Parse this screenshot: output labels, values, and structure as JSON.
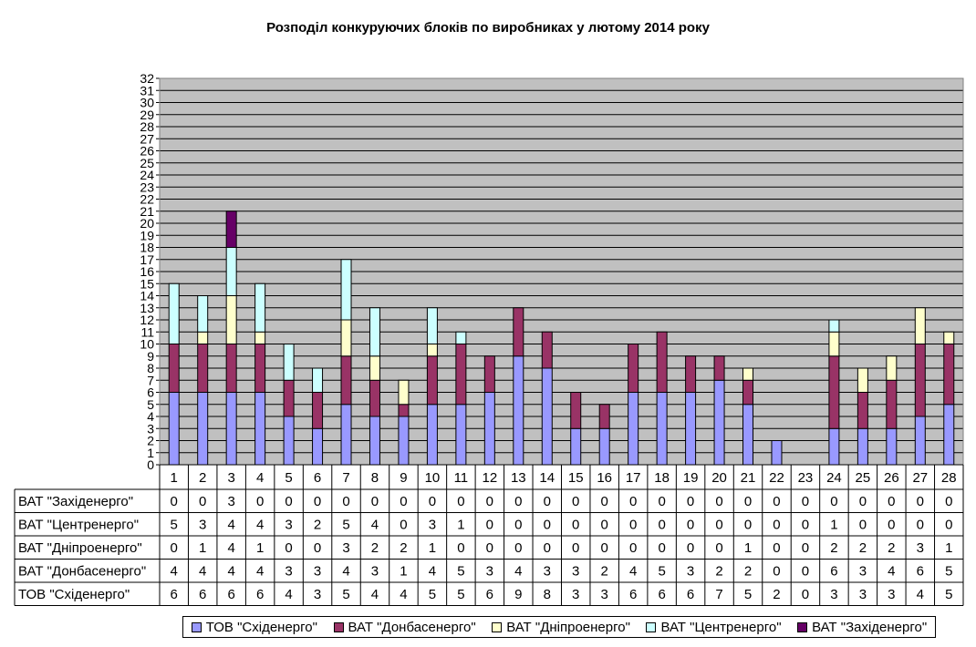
{
  "chart_data": {
    "type": "bar",
    "stacked": true,
    "title": "Розподіл конкуруючих блоків по виробниках у лютому 2014 року",
    "xlabel": "",
    "ylabel": "",
    "ylim": [
      0,
      32
    ],
    "yticks": [
      "0",
      "1",
      "2",
      "3",
      "4",
      "5",
      "6",
      "7",
      "8",
      "9",
      "10",
      "11",
      "12",
      "13",
      "14",
      "15",
      "16",
      "17",
      "18",
      "19",
      "20",
      "21",
      "22",
      "23",
      "24",
      "25",
      "26",
      "27",
      "28",
      "29",
      "30",
      "31",
      "32"
    ],
    "grid": true,
    "legend_position": "bottom",
    "categories": [
      "1",
      "2",
      "3",
      "4",
      "5",
      "6",
      "7",
      "8",
      "9",
      "10",
      "11",
      "12",
      "13",
      "14",
      "15",
      "16",
      "17",
      "18",
      "19",
      "20",
      "21",
      "22",
      "23",
      "24",
      "25",
      "26",
      "27",
      "28"
    ],
    "series": [
      {
        "name": "ТОВ \"Східенерго\"",
        "color": "#9999ff",
        "values": [
          6,
          6,
          6,
          6,
          4,
          3,
          5,
          4,
          4,
          5,
          5,
          6,
          9,
          8,
          3,
          3,
          6,
          6,
          6,
          7,
          5,
          2,
          0,
          3,
          3,
          3,
          4,
          5
        ]
      },
      {
        "name": "ВАТ \"Донбасенерго\"",
        "color": "#993366",
        "values": [
          4,
          4,
          4,
          4,
          3,
          3,
          4,
          3,
          1,
          4,
          5,
          3,
          4,
          3,
          3,
          2,
          4,
          5,
          3,
          2,
          2,
          0,
          0,
          6,
          3,
          4,
          6,
          5
        ]
      },
      {
        "name": "ВАТ \"Дніпроенерго\"",
        "color": "#ffffcc",
        "values": [
          0,
          1,
          4,
          1,
          0,
          0,
          3,
          2,
          2,
          1,
          0,
          0,
          0,
          0,
          0,
          0,
          0,
          0,
          0,
          0,
          1,
          0,
          0,
          2,
          2,
          2,
          3,
          1
        ]
      },
      {
        "name": "ВАТ \"Центренерго\"",
        "color": "#ccffff",
        "values": [
          5,
          3,
          4,
          4,
          3,
          2,
          5,
          4,
          0,
          3,
          1,
          0,
          0,
          0,
          0,
          0,
          0,
          0,
          0,
          0,
          0,
          0,
          0,
          1,
          0,
          0,
          0,
          0
        ]
      },
      {
        "name": "ВАТ \"Західенерго\"",
        "color": "#660066",
        "values": [
          0,
          0,
          3,
          0,
          0,
          0,
          0,
          0,
          0,
          0,
          0,
          0,
          0,
          0,
          0,
          0,
          0,
          0,
          0,
          0,
          0,
          0,
          0,
          0,
          0,
          0,
          0,
          0
        ]
      }
    ],
    "table_row_order": [
      "ВАТ \"Західенерго\"",
      "ВАТ \"Центренерго\"",
      "ВАТ \"Дніпроенерго\"",
      "ВАТ \"Донбасенерго\"",
      "ТОВ \"Східенерго\""
    ]
  }
}
